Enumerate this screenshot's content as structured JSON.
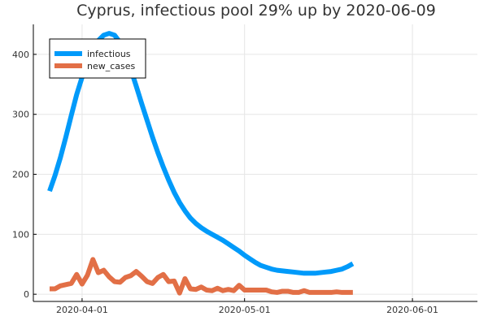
{
  "chart_data": {
    "type": "line",
    "title": "Cyprus, infectious pool 29% up by 2020-06-09",
    "xlabel": "",
    "ylabel": "",
    "x_start": "2020-03-26",
    "x_ticks": [
      "2020-04-01",
      "2020-05-01",
      "2020-06-01"
    ],
    "y_ticks": [
      0,
      100,
      200,
      300,
      400
    ],
    "xlim": [
      "2020-03-23",
      "2020-06-13"
    ],
    "ylim": [
      -12,
      450
    ],
    "grid": true,
    "legend": "top-left",
    "series": [
      {
        "name": "infectious",
        "color": "#009AFA",
        "values": [
          172,
          198,
          228,
          262,
          298,
          333,
          362,
          388,
          408,
          423,
          432,
          435,
          432,
          420,
          400,
          375,
          347,
          318,
          290,
          262,
          236,
          212,
          190,
          170,
          153,
          139,
          127,
          118,
          111,
          105,
          100,
          95,
          90,
          84,
          78,
          72,
          65,
          59,
          53,
          48,
          45,
          42,
          40,
          39,
          38,
          37,
          36,
          35,
          35,
          35,
          36,
          37,
          38,
          40,
          42,
          46,
          51
        ]
      },
      {
        "name": "new_cases",
        "color": "#E26F46",
        "values": [
          9,
          9,
          14,
          16,
          18,
          33,
          17,
          32,
          58,
          36,
          40,
          29,
          21,
          20,
          28,
          31,
          38,
          30,
          21,
          18,
          28,
          33,
          21,
          22,
          2,
          26,
          9,
          8,
          12,
          7,
          6,
          10,
          6,
          8,
          6,
          15,
          7,
          7,
          7,
          7,
          7,
          4,
          3,
          5,
          5,
          3,
          3,
          6,
          3,
          3,
          3,
          3,
          3,
          4,
          3,
          3,
          3
        ]
      }
    ]
  }
}
